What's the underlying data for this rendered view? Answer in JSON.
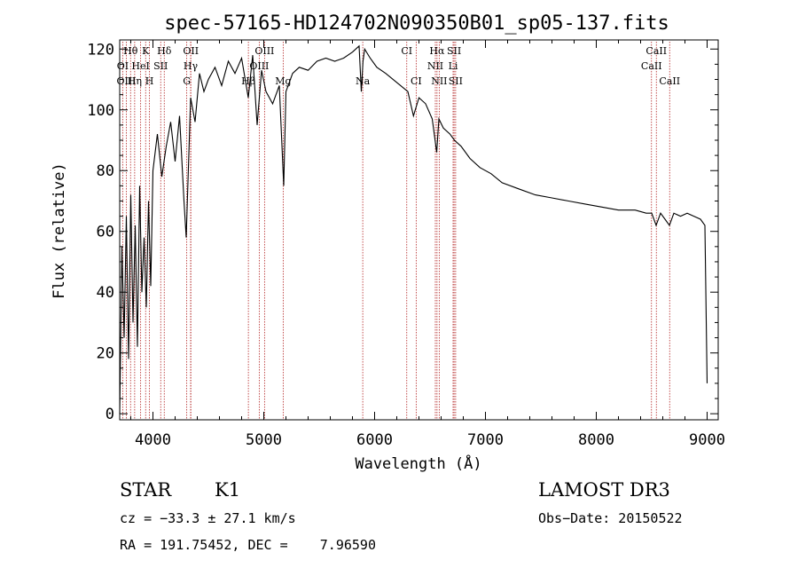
{
  "chart_data": {
    "type": "line",
    "title": "spec-57165-HD124702N090350B01_sp05-137.fits",
    "xlabel": "Wavelength (Å)",
    "ylabel": "Flux (relative)",
    "xlim": [
      3700,
      9100
    ],
    "ylim": [
      -2,
      123
    ],
    "xticks": [
      4000,
      5000,
      6000,
      7000,
      8000,
      9000
    ],
    "yticks": [
      0,
      20,
      40,
      60,
      80,
      100,
      120
    ],
    "grid": false,
    "series": [
      {
        "name": "flux",
        "x": [
          3700,
          3720,
          3740,
          3760,
          3780,
          3800,
          3820,
          3840,
          3860,
          3880,
          3900,
          3920,
          3940,
          3960,
          3980,
          4000,
          4040,
          4080,
          4120,
          4160,
          4200,
          4240,
          4280,
          4300,
          4340,
          4380,
          4420,
          4460,
          4500,
          4560,
          4620,
          4680,
          4740,
          4800,
          4860,
          4900,
          4940,
          4980,
          5020,
          5080,
          5140,
          5180,
          5200,
          5260,
          5320,
          5400,
          5480,
          5560,
          5640,
          5720,
          5800,
          5860,
          5880,
          5895,
          5910,
          5960,
          6020,
          6100,
          6200,
          6300,
          6350,
          6400,
          6460,
          6520,
          6560,
          6580,
          6620,
          6680,
          6720,
          6780,
          6860,
          6950,
          7050,
          7150,
          7300,
          7450,
          7600,
          7750,
          7900,
          8050,
          8200,
          8350,
          8450,
          8500,
          8540,
          8580,
          8620,
          8660,
          8700,
          8760,
          8820,
          8880,
          8940,
          8980,
          9000
        ],
        "y": [
          0,
          55,
          25,
          65,
          18,
          72,
          30,
          62,
          22,
          75,
          40,
          58,
          35,
          70,
          42,
          80,
          92,
          78,
          88,
          96,
          83,
          98,
          70,
          58,
          104,
          96,
          112,
          106,
          110,
          114,
          108,
          116,
          112,
          117,
          104,
          118,
          95,
          113,
          106,
          102,
          108,
          75,
          106,
          112,
          114,
          113,
          116,
          117,
          116,
          117,
          119,
          121,
          106,
          116,
          120,
          117,
          114,
          112,
          109,
          106,
          98,
          104,
          102,
          97,
          86,
          97,
          94,
          92,
          90,
          88,
          84,
          81,
          79,
          76,
          74,
          72,
          71,
          70,
          69,
          68,
          67,
          67,
          66,
          66,
          62,
          66,
          64,
          62,
          66,
          65,
          66,
          65,
          64,
          62,
          10
        ]
      }
    ],
    "spectral_lines": [
      {
        "label": "Hθ",
        "x": 3798,
        "row": 1
      },
      {
        "label": "K",
        "x": 3934,
        "row": 1
      },
      {
        "label": "Hδ",
        "x": 4102,
        "row": 1
      },
      {
        "label": "OII",
        "x": 4342,
        "row": 1
      },
      {
        "label": "OIII",
        "x": 5007,
        "row": 1
      },
      {
        "label": "CI",
        "x": 6290,
        "row": 1
      },
      {
        "label": "Hα",
        "x": 6563,
        "row": 1
      },
      {
        "label": "SII",
        "x": 6717,
        "row": 1
      },
      {
        "label": "CaII",
        "x": 8542,
        "row": 1
      },
      {
        "label": "OI",
        "x": 3727,
        "row": 2
      },
      {
        "label": "HeI",
        "x": 3889,
        "row": 2
      },
      {
        "label": "SII",
        "x": 4070,
        "row": 2
      },
      {
        "label": "Hγ",
        "x": 4340,
        "row": 2
      },
      {
        "label": "OIII",
        "x": 4959,
        "row": 2
      },
      {
        "label": "NII",
        "x": 6548,
        "row": 2
      },
      {
        "label": "Li",
        "x": 6708,
        "row": 2
      },
      {
        "label": "CaII",
        "x": 8498,
        "row": 2
      },
      {
        "label": "OIII",
        "x": 3760,
        "row": 3
      },
      {
        "label": "Hη",
        "x": 3835,
        "row": 3
      },
      {
        "label": "H",
        "x": 3968,
        "row": 3
      },
      {
        "label": "G",
        "x": 4305,
        "row": 3
      },
      {
        "label": "Hβ",
        "x": 4861,
        "row": 3
      },
      {
        "label": "Mg",
        "x": 5175,
        "row": 3
      },
      {
        "label": "Na",
        "x": 5893,
        "row": 3
      },
      {
        "label": "CI",
        "x": 6375,
        "row": 3
      },
      {
        "label": "NII",
        "x": 6583,
        "row": 3
      },
      {
        "label": "SII",
        "x": 6731,
        "row": 3
      },
      {
        "label": "CaII",
        "x": 8662,
        "row": 3
      }
    ]
  },
  "info": {
    "object_type": "STAR",
    "subclass": "K1",
    "survey": "LAMOST DR3",
    "redshift": "cz = −33.3 ± 27.1 km/s",
    "obs_date": "Obs−Date: 20150522",
    "coordinates": "RA = 191.75452, DEC =    7.96590"
  },
  "colors": {
    "curve": "#000000",
    "line_marker": "#b22222",
    "axis": "#000000"
  }
}
